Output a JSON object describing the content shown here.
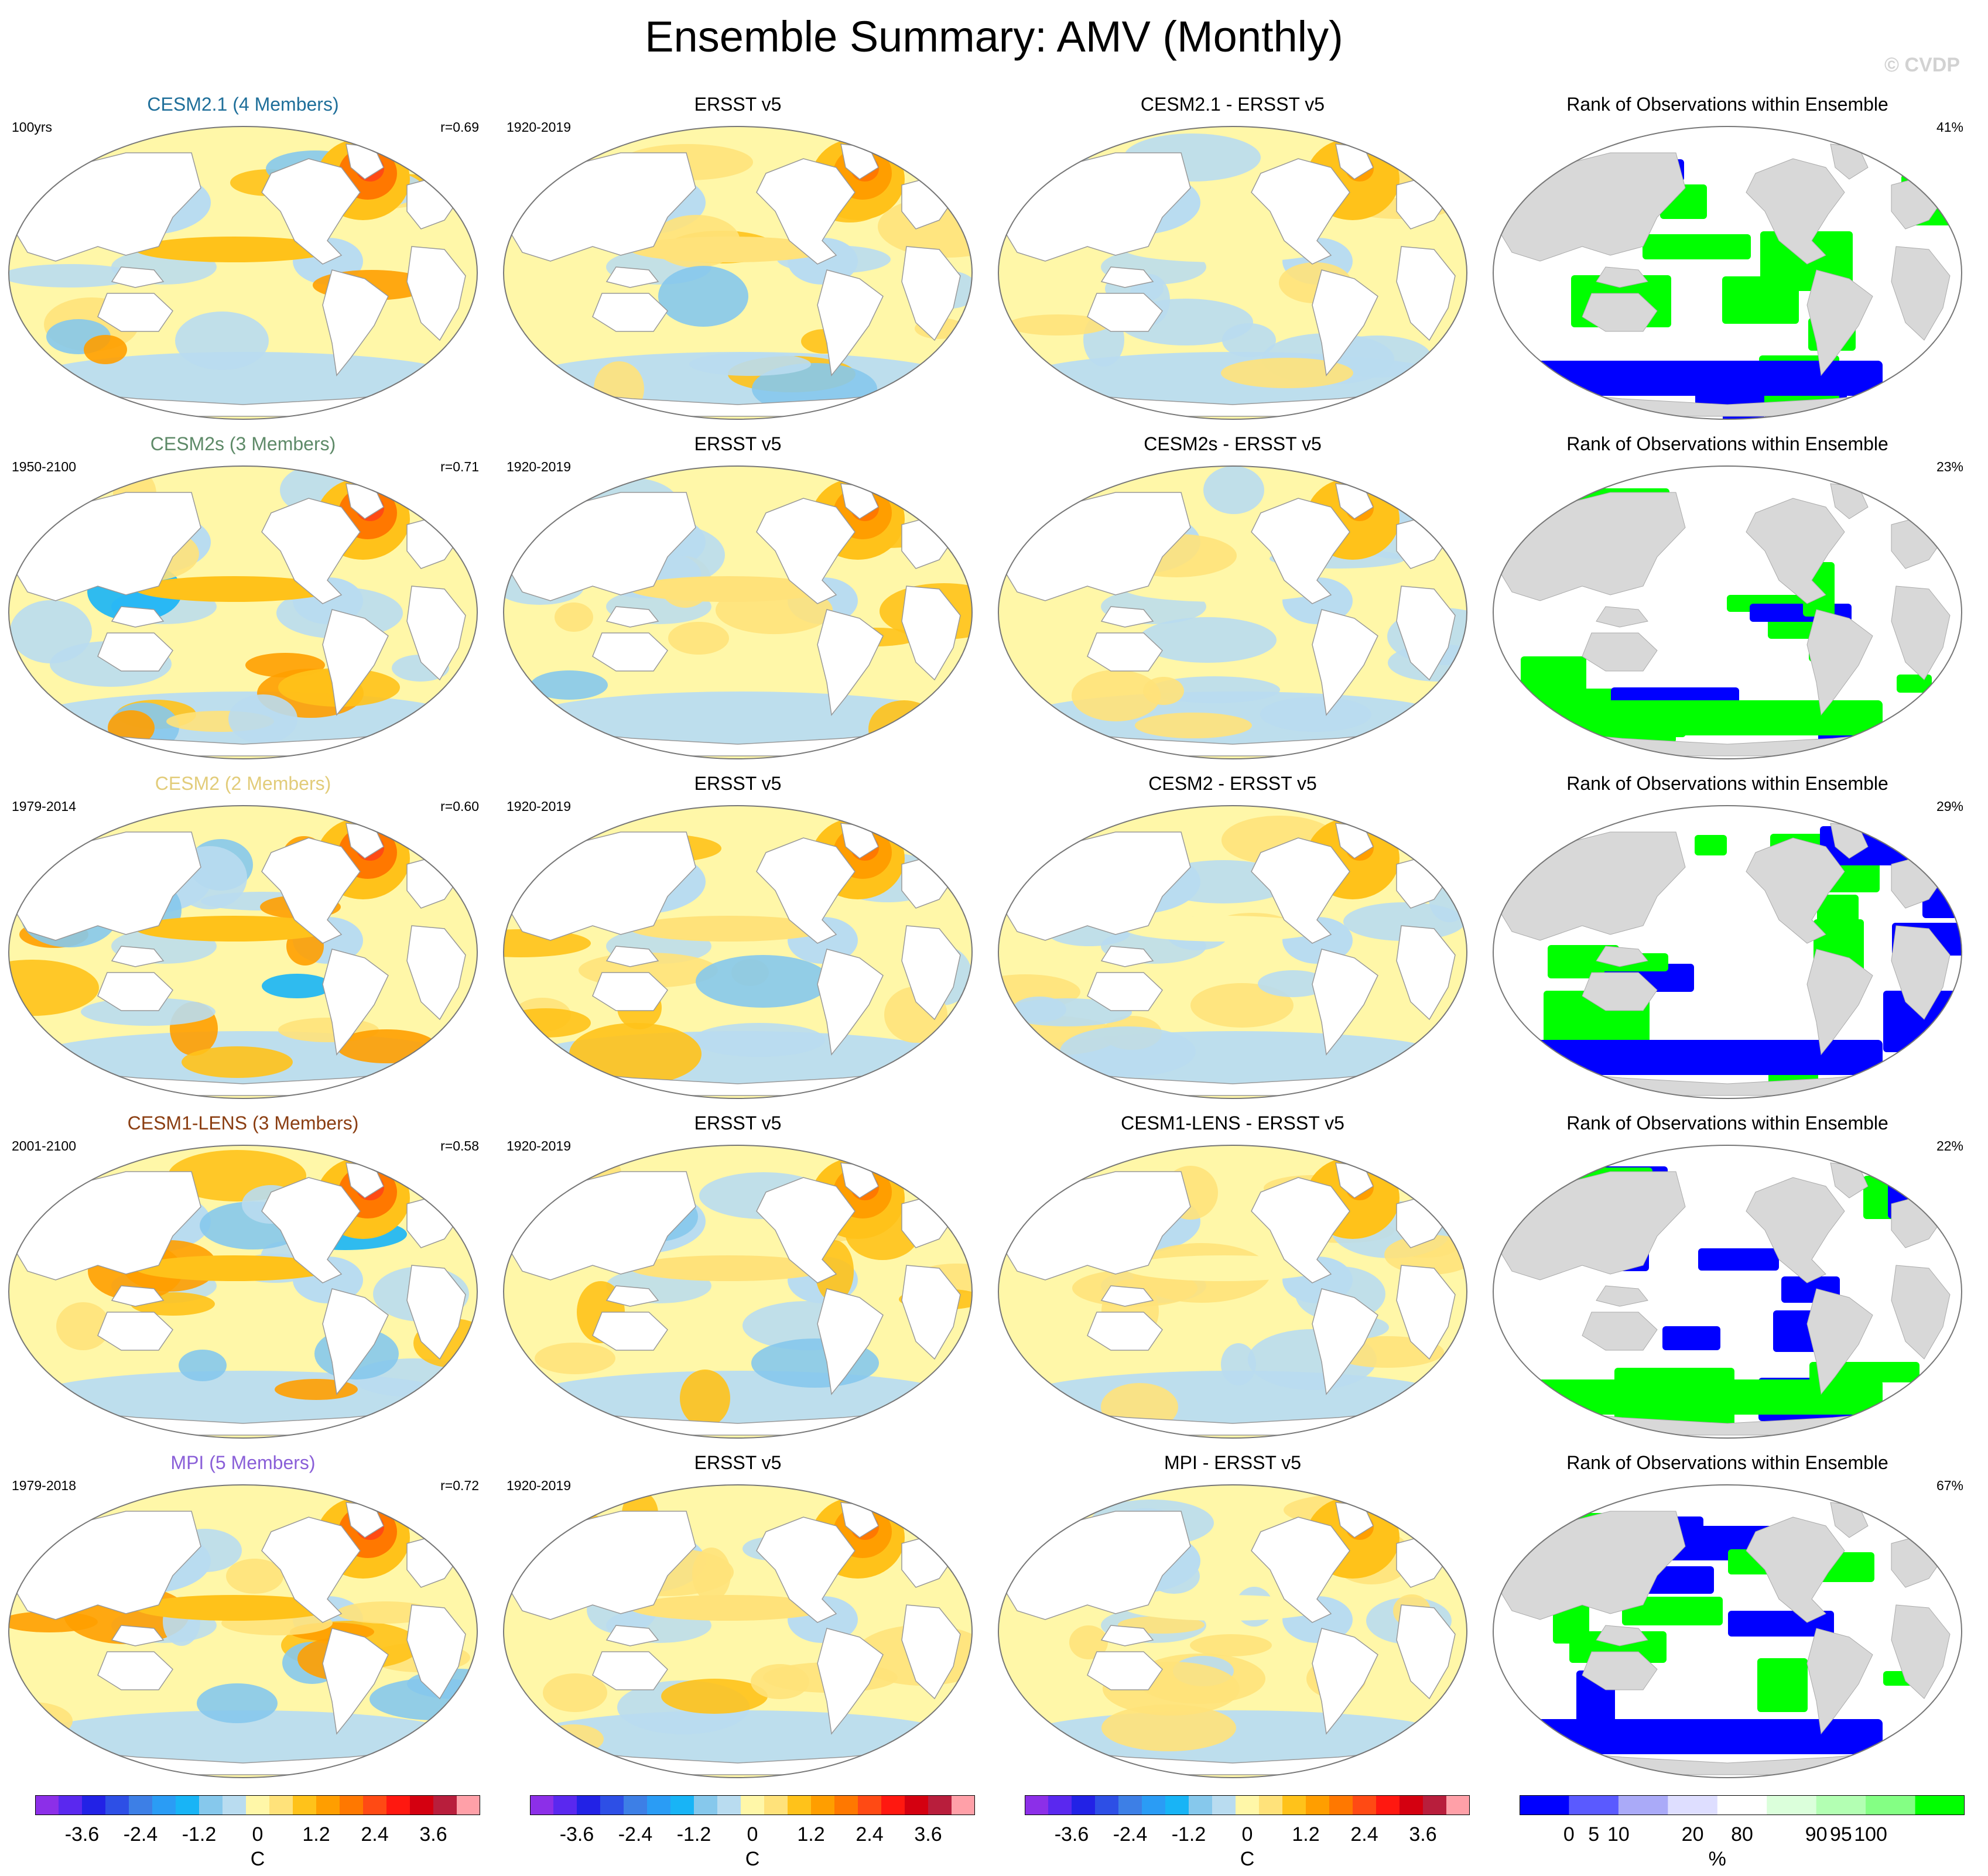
{
  "title": "Ensemble Summary: AMV (Monthly)",
  "watermark": "© CVDP",
  "colors": {
    "anom_palette": [
      "#8c2fe8",
      "#5a28ef",
      "#2222e6",
      "#2d4fe6",
      "#3d7fe6",
      "#2a9cf5",
      "#18b4f6",
      "#86c8ec",
      "#b9dcf0",
      "#fff7a8",
      "#ffe27a",
      "#ffc21a",
      "#ff9e00",
      "#ff7800",
      "#ff4a14",
      "#ff1810",
      "#d40010",
      "#b81e3c",
      "#ffa0a8"
    ],
    "rank_palette": [
      "#0000ff",
      "#5a5aff",
      "#aaaaf8",
      "#dedeff",
      "#ffffff",
      "#dbffdb",
      "#b3ffb3",
      "#84ff84",
      "#00ff00"
    ],
    "land": "#ffffff",
    "rank_land": "#d8d8d8",
    "outline": "#777777"
  },
  "rows": [
    {
      "model": {
        "title": "CESM2.1 (4 Members)",
        "title_color": "#1f6f9a",
        "period": "100yrs",
        "corr": "r=0.69"
      },
      "obs": {
        "title": "ERSST v5",
        "period": "1920-2019"
      },
      "diff": {
        "title": "CESM2.1 - ERSST v5"
      },
      "rank": {
        "title": "Rank of Observations within Ensemble",
        "pct": "41%"
      }
    },
    {
      "model": {
        "title": "CESM2s (3 Members)",
        "title_color": "#5e8a68",
        "period": "1950-2100",
        "corr": "r=0.71"
      },
      "obs": {
        "title": "ERSST v5",
        "period": "1920-2019"
      },
      "diff": {
        "title": "CESM2s - ERSST v5"
      },
      "rank": {
        "title": "Rank of Observations within Ensemble",
        "pct": "23%"
      }
    },
    {
      "model": {
        "title": "CESM2 (2 Members)",
        "title_color": "#e2cc7a",
        "period": "1979-2014",
        "corr": "r=0.60"
      },
      "obs": {
        "title": "ERSST v5",
        "period": "1920-2019"
      },
      "diff": {
        "title": "CESM2 - ERSST v5"
      },
      "rank": {
        "title": "Rank of Observations within Ensemble",
        "pct": "29%"
      }
    },
    {
      "model": {
        "title": "CESM1-LENS (3 Members)",
        "title_color": "#8b3e12",
        "period": "2001-2100",
        "corr": "r=0.58"
      },
      "obs": {
        "title": "ERSST v5",
        "period": "1920-2019"
      },
      "diff": {
        "title": "CESM1-LENS - ERSST v5"
      },
      "rank": {
        "title": "Rank of Observations within Ensemble",
        "pct": "22%"
      }
    },
    {
      "model": {
        "title": "MPI (5 Members)",
        "title_color": "#8a5fd8",
        "period": "1979-2018",
        "corr": "r=0.72"
      },
      "obs": {
        "title": "ERSST v5",
        "period": "1920-2019"
      },
      "diff": {
        "title": "MPI - ERSST v5"
      },
      "rank": {
        "title": "Rank of Observations within Ensemble",
        "pct": "67%"
      }
    }
  ],
  "legends": {
    "anomaly": {
      "ticks": [
        "-3.6",
        "-2.4",
        "-1.2",
        "0",
        "1.2",
        "2.4",
        "3.6"
      ],
      "unit": "C"
    },
    "rank": {
      "ticks": [
        "0",
        "5",
        "10",
        "20",
        "80",
        "90",
        "95",
        "100"
      ],
      "unit": "%"
    }
  }
}
